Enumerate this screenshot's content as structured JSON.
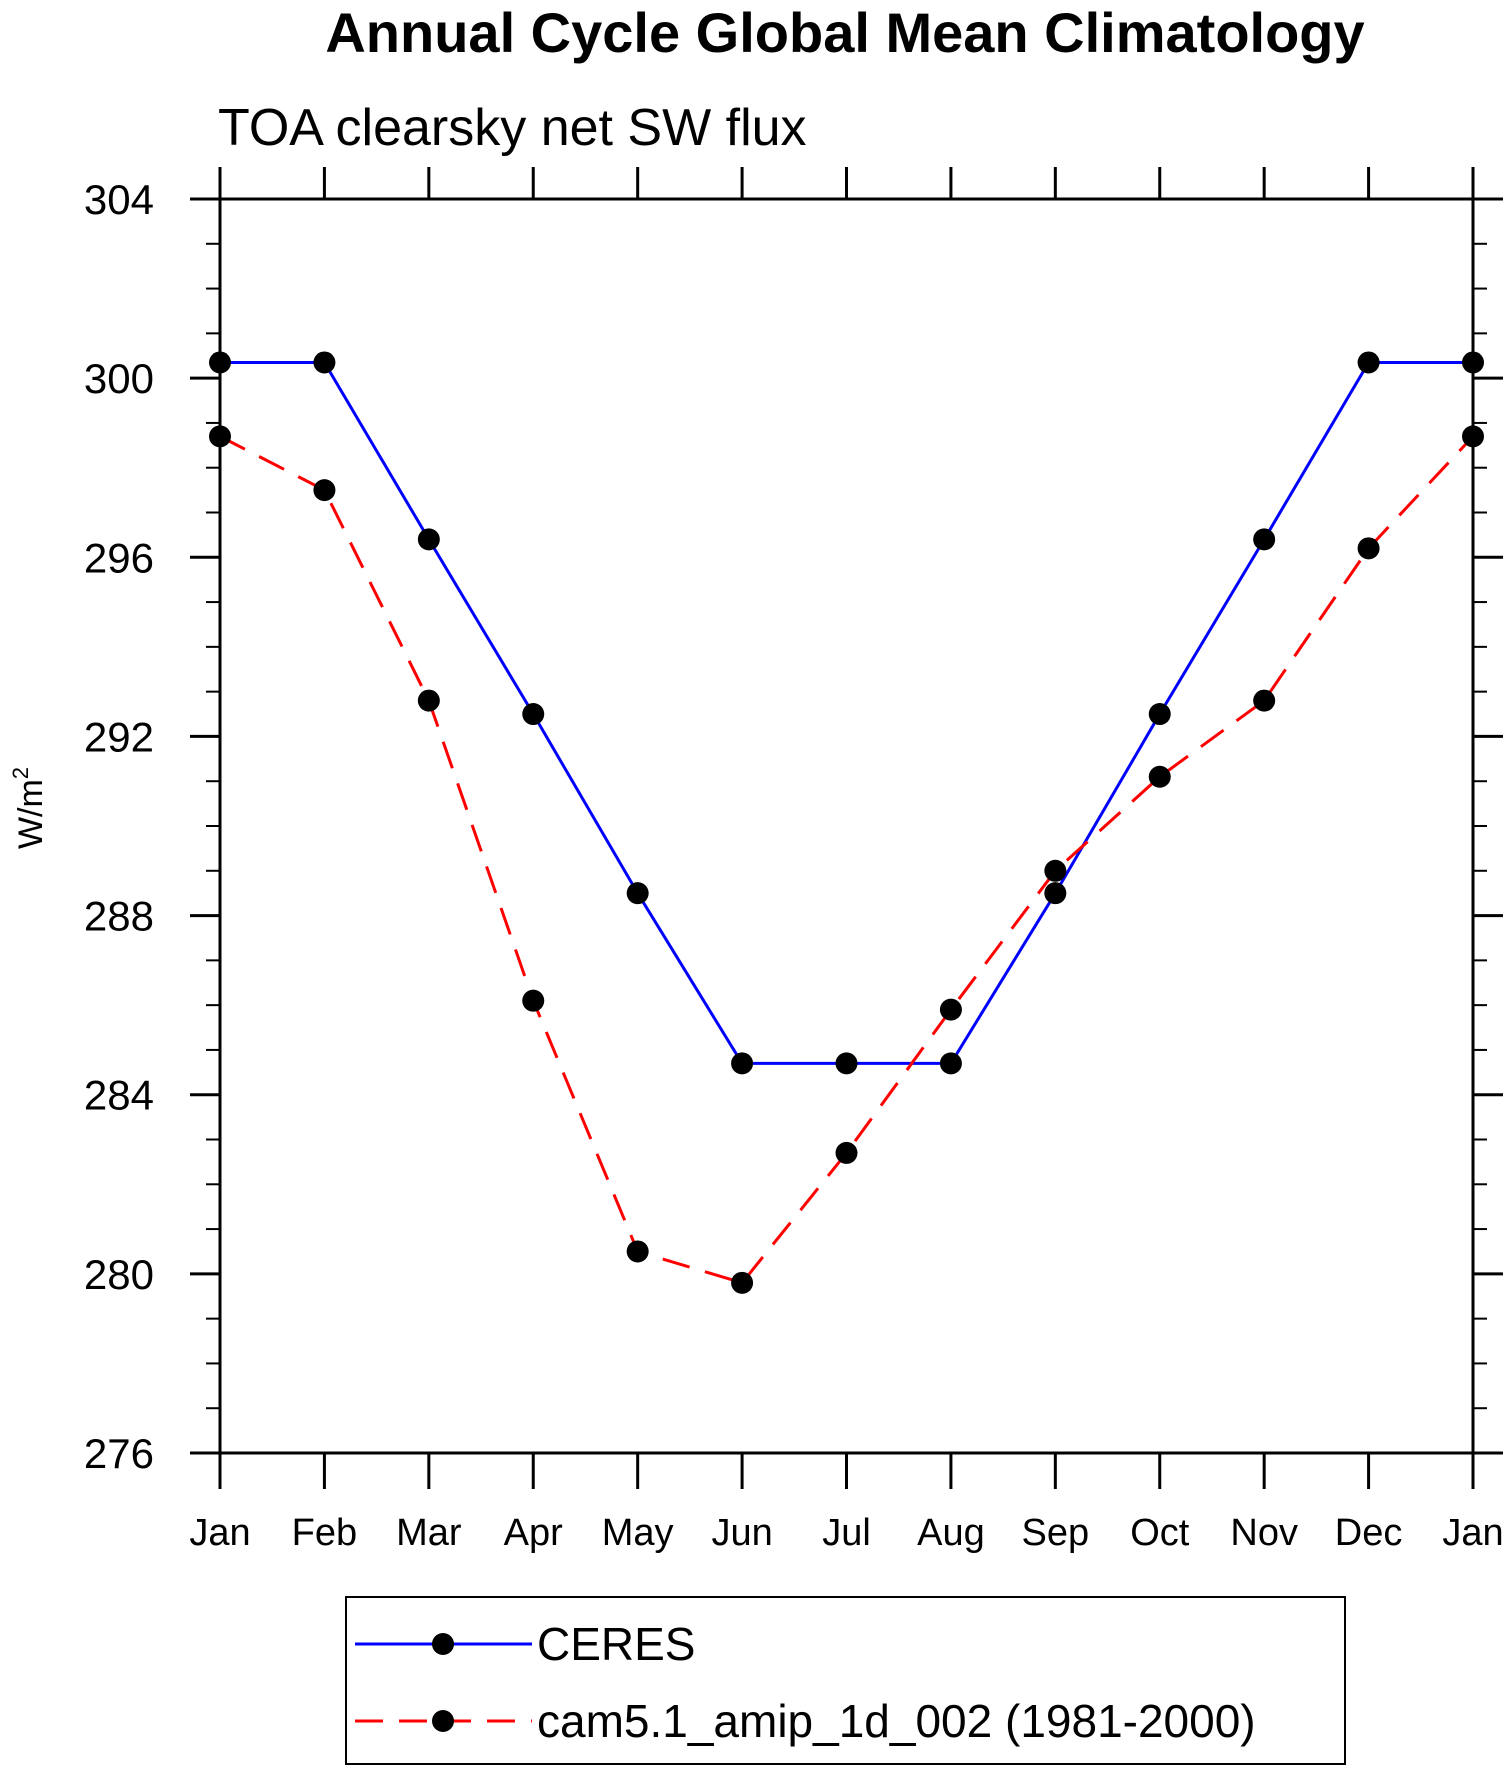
{
  "chart_data": {
    "type": "line",
    "title": "Annual Cycle Global Mean Climatology",
    "subtitle": "TOA clearsky net SW flux",
    "ylabel": "W/m",
    "ylabel_sup": "2",
    "xlabel": "",
    "ylim": [
      276,
      304
    ],
    "y_ticks": [
      276,
      280,
      284,
      288,
      292,
      296,
      300,
      304
    ],
    "y_minor_step": 1,
    "categories": [
      "Jan",
      "Feb",
      "Mar",
      "Apr",
      "May",
      "Jun",
      "Jul",
      "Aug",
      "Sep",
      "Oct",
      "Nov",
      "Dec",
      "Jan"
    ],
    "grid": false,
    "legend_position": "bottom",
    "series": [
      {
        "name": "CERES",
        "color": "#0000ff",
        "dash": "solid",
        "values": [
          300.35,
          300.35,
          296.4,
          292.5,
          288.5,
          284.7,
          284.7,
          284.7,
          288.5,
          292.5,
          296.4,
          300.35,
          300.35
        ]
      },
      {
        "name": "cam5.1_amip_1d_002 (1981-2000)",
        "color": "#ff0000",
        "dash": "dashed",
        "values": [
          298.7,
          297.5,
          292.8,
          286.1,
          280.5,
          279.8,
          282.7,
          285.9,
          289.0,
          291.1,
          292.8,
          296.2,
          298.7
        ]
      }
    ]
  }
}
